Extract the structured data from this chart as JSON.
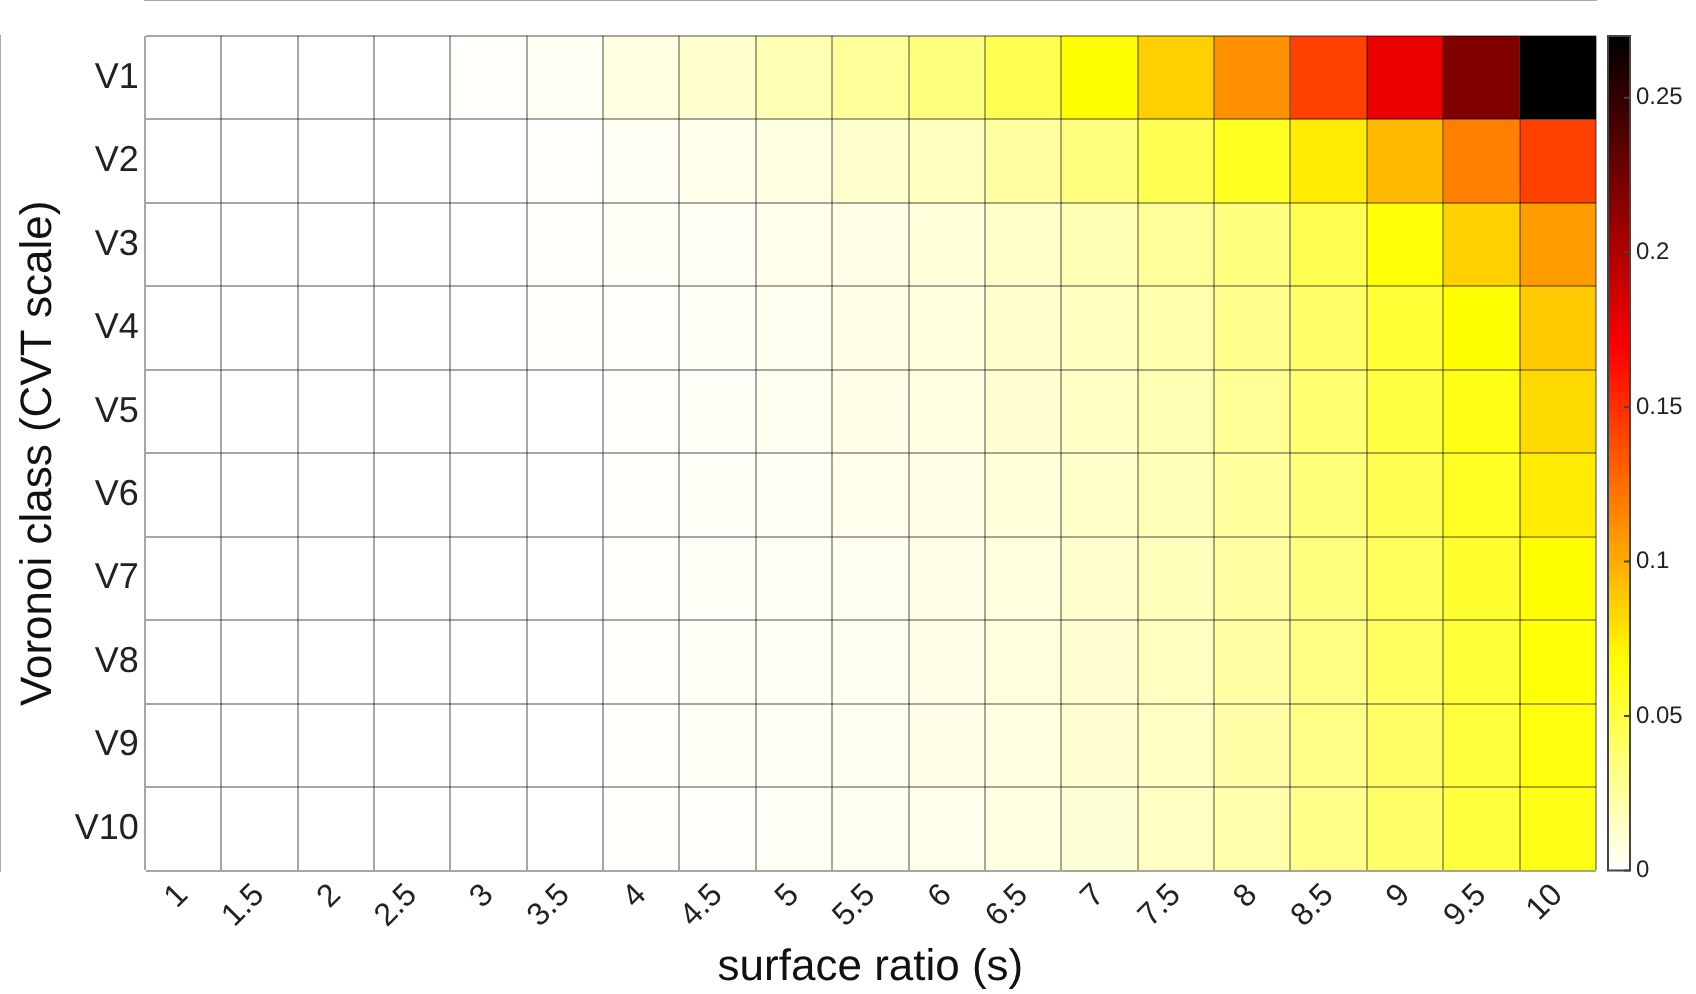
{
  "chart_data": {
    "type": "heatmap",
    "xlabel": "surface ratio (s)",
    "ylabel": "Voronoi class (CVT scale)",
    "categories": [
      "1",
      "1.5",
      "2",
      "2.5",
      "3",
      "3.5",
      "4",
      "4.5",
      "5",
      "5.5",
      "6",
      "6.5",
      "7",
      "7.5",
      "8",
      "8.5",
      "9",
      "9.5",
      "10"
    ],
    "y_categories": [
      "V1",
      "V2",
      "V3",
      "V4",
      "V5",
      "V6",
      "V7",
      "V8",
      "V9",
      "V10"
    ],
    "cells": [
      [
        0,
        0,
        0,
        0,
        0.001,
        0.003,
        0.008,
        0.013,
        0.02,
        0.027,
        0.034,
        0.046,
        0.068,
        0.086,
        0.111,
        0.143,
        0.176,
        0.219,
        0.27
      ],
      [
        0,
        0,
        0,
        0,
        0,
        0.001,
        0.003,
        0.005,
        0.008,
        0.013,
        0.017,
        0.025,
        0.034,
        0.046,
        0.059,
        0.075,
        0.095,
        0.118,
        0.143
      ],
      [
        0,
        0,
        0,
        0,
        0,
        0.001,
        0.002,
        0.003,
        0.005,
        0.007,
        0.01,
        0.014,
        0.02,
        0.027,
        0.034,
        0.046,
        0.066,
        0.086,
        0.107
      ],
      [
        0,
        0,
        0,
        0,
        0,
        0.001,
        0.001,
        0.002,
        0.004,
        0.006,
        0.009,
        0.013,
        0.017,
        0.022,
        0.03,
        0.04,
        0.054,
        0.068,
        0.089
      ],
      [
        0,
        0,
        0,
        0,
        0,
        0,
        0.001,
        0.002,
        0.004,
        0.006,
        0.008,
        0.012,
        0.015,
        0.02,
        0.028,
        0.038,
        0.05,
        0.062,
        0.082
      ],
      [
        0,
        0,
        0,
        0,
        0,
        0,
        0.001,
        0.002,
        0.003,
        0.005,
        0.007,
        0.01,
        0.014,
        0.019,
        0.026,
        0.036,
        0.046,
        0.058,
        0.075
      ],
      [
        0,
        0,
        0,
        0,
        0,
        0,
        0.001,
        0.002,
        0.003,
        0.004,
        0.006,
        0.009,
        0.013,
        0.018,
        0.025,
        0.034,
        0.044,
        0.055,
        0.068
      ],
      [
        0,
        0,
        0,
        0,
        0,
        0,
        0.001,
        0.002,
        0.003,
        0.004,
        0.006,
        0.009,
        0.012,
        0.017,
        0.024,
        0.033,
        0.042,
        0.053,
        0.066
      ],
      [
        0,
        0,
        0,
        0,
        0,
        0,
        0.001,
        0.002,
        0.003,
        0.004,
        0.006,
        0.008,
        0.012,
        0.016,
        0.023,
        0.032,
        0.041,
        0.052,
        0.064
      ],
      [
        0,
        0,
        0,
        0,
        0,
        0,
        0.001,
        0.001,
        0.002,
        0.004,
        0.005,
        0.008,
        0.011,
        0.016,
        0.022,
        0.031,
        0.04,
        0.051,
        0.062
      ]
    ],
    "clim": [
      0,
      0.27
    ],
    "cticks": [
      0,
      0.05,
      0.1,
      0.15,
      0.2,
      0.25
    ],
    "grid": true
  }
}
